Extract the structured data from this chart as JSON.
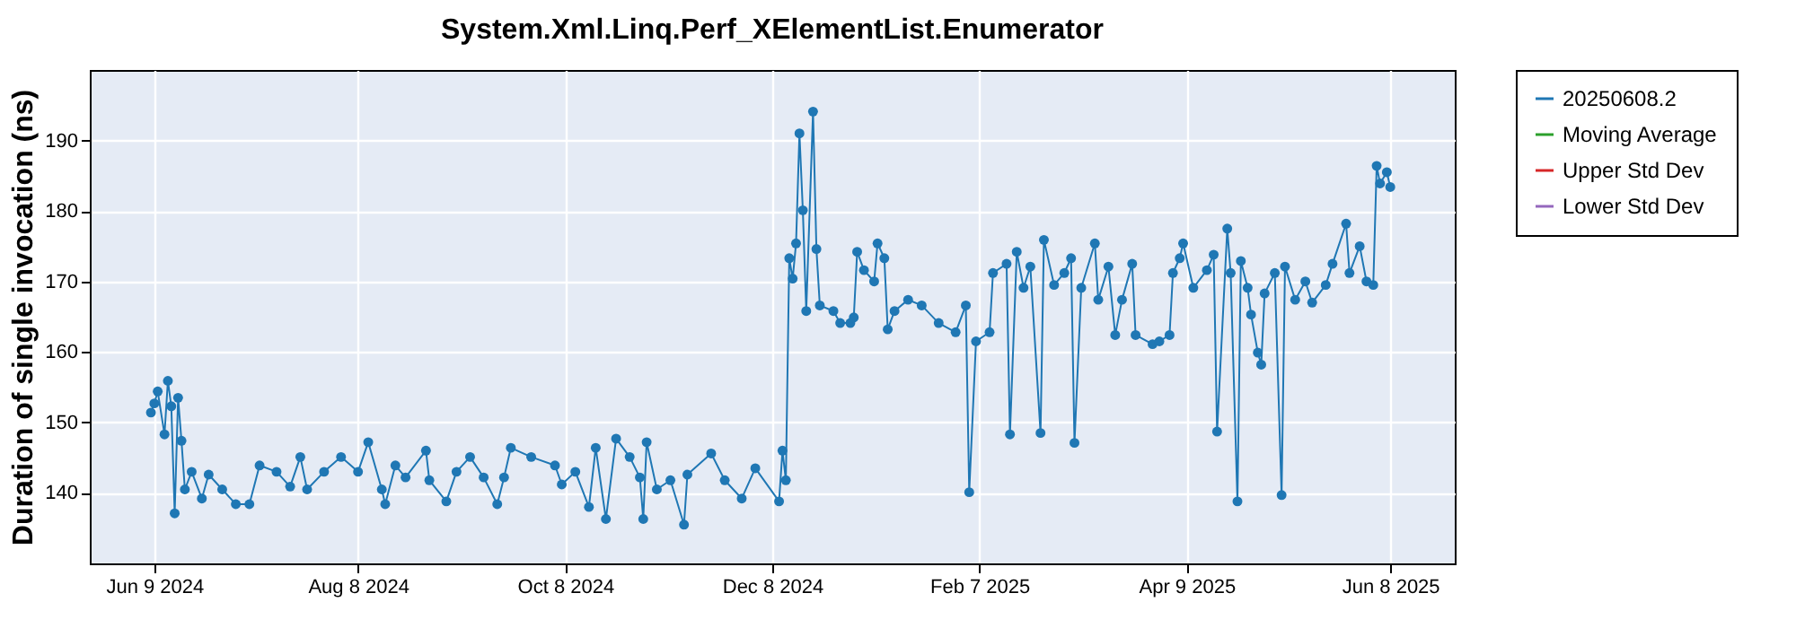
{
  "chart_data": {
    "type": "line",
    "title": "System.Xml.Linq.Perf_XElementList.Enumerator",
    "ylabel": "Duration of single invocation (ns)",
    "x": [
      "2024-06-08",
      "2024-06-09",
      "2024-06-10",
      "2024-06-12",
      "2024-06-13",
      "2024-06-14",
      "2024-06-15",
      "2024-06-16",
      "2024-06-17",
      "2024-06-18",
      "2024-06-20",
      "2024-06-23",
      "2024-06-25",
      "2024-06-29",
      "2024-07-03",
      "2024-07-07",
      "2024-07-10",
      "2024-07-15",
      "2024-07-19",
      "2024-07-22",
      "2024-07-24",
      "2024-07-29",
      "2024-08-03",
      "2024-08-08",
      "2024-08-11",
      "2024-08-15",
      "2024-08-16",
      "2024-08-19",
      "2024-08-22",
      "2024-08-28",
      "2024-08-29",
      "2024-09-03",
      "2024-09-06",
      "2024-09-10",
      "2024-09-14",
      "2024-09-18",
      "2024-09-20",
      "2024-09-22",
      "2024-09-28",
      "2024-10-05",
      "2024-10-07",
      "2024-10-11",
      "2024-10-15",
      "2024-10-17",
      "2024-10-20",
      "2024-10-23",
      "2024-10-27",
      "2024-10-30",
      "2024-10-31",
      "2024-11-01",
      "2024-11-04",
      "2024-11-08",
      "2024-11-12",
      "2024-11-13",
      "2024-11-20",
      "2024-11-24",
      "2024-11-29",
      "2024-12-03",
      "2024-12-10",
      "2024-12-11",
      "2024-12-12",
      "2024-12-13",
      "2024-12-14",
      "2024-12-15",
      "2024-12-16",
      "2024-12-17",
      "2024-12-18",
      "2024-12-20",
      "2024-12-21",
      "2024-12-22",
      "2024-12-26",
      "2024-12-28",
      "2024-12-31",
      "2025-01-01",
      "2025-01-02",
      "2025-01-04",
      "2025-01-07",
      "2025-01-08",
      "2025-01-10",
      "2025-01-11",
      "2025-01-13",
      "2025-01-17",
      "2025-01-21",
      "2025-01-26",
      "2025-01-31",
      "2025-02-03",
      "2025-02-04",
      "2025-02-06",
      "2025-02-10",
      "2025-02-11",
      "2025-02-15",
      "2025-02-16",
      "2025-02-18",
      "2025-02-20",
      "2025-02-22",
      "2025-02-25",
      "2025-02-26",
      "2025-03-01",
      "2025-03-04",
      "2025-03-06",
      "2025-03-07",
      "2025-03-09",
      "2025-03-13",
      "2025-03-14",
      "2025-03-17",
      "2025-03-19",
      "2025-03-21",
      "2025-03-24",
      "2025-03-25",
      "2025-03-30",
      "2025-04-01",
      "2025-04-04",
      "2025-04-05",
      "2025-04-07",
      "2025-04-08",
      "2025-04-11",
      "2025-04-15",
      "2025-04-17",
      "2025-04-18",
      "2025-04-21",
      "2025-04-22",
      "2025-04-24",
      "2025-04-25",
      "2025-04-27",
      "2025-04-28",
      "2025-04-30",
      "2025-05-01",
      "2025-05-02",
      "2025-05-05",
      "2025-05-07",
      "2025-05-08",
      "2025-05-11",
      "2025-05-14",
      "2025-05-16",
      "2025-05-20",
      "2025-05-22",
      "2025-05-26",
      "2025-05-27",
      "2025-05-30",
      "2025-06-01",
      "2025-06-03",
      "2025-06-04",
      "2025-06-05",
      "2025-06-07",
      "2025-06-08"
    ],
    "series": [
      {
        "name": "20250608.2",
        "color": "#1f77b4",
        "values": [
          151.4,
          152.7,
          154.4,
          148.3,
          155.9,
          152.3,
          137.1,
          153.5,
          147.4,
          140.5,
          143,
          139.2,
          142.6,
          140.5,
          138.4,
          138.4,
          143.9,
          143,
          140.9,
          145.1,
          140.5,
          143,
          145.1,
          143,
          147.2,
          140.5,
          138.4,
          143.9,
          142.2,
          146,
          141.8,
          138.8,
          143,
          145.1,
          142.2,
          138.4,
          142.2,
          146.4,
          145.1,
          143.9,
          141.2,
          143,
          138,
          146.4,
          136.3,
          147.7,
          145.1,
          142.2,
          136.3,
          147.2,
          140.5,
          141.8,
          135.5,
          142.6,
          145.6,
          141.8,
          139.2,
          143.5,
          138.8,
          146,
          141.8,
          173.3,
          170.4,
          175.4,
          191,
          180.1,
          165.8,
          194.1,
          174.6,
          166.6,
          165.8,
          164.1,
          164.1,
          164.9,
          174.2,
          171.6,
          170,
          175.4,
          173.3,
          163.2,
          165.8,
          167.4,
          166.6,
          164.1,
          162.8,
          166.6,
          140.1,
          161.5,
          162.8,
          171.2,
          172.5,
          148.3,
          174.2,
          169.1,
          172.1,
          148.5,
          175.9,
          169.5,
          171.2,
          173.3,
          147.1,
          169.1,
          175.4,
          167.4,
          172.1,
          162.4,
          167.4,
          172.5,
          162.4,
          161.1,
          161.5,
          162.4,
          171.2,
          173.3,
          175.4,
          169.1,
          171.6,
          173.8,
          148.7,
          177.5,
          171.2,
          138.8,
          172.9,
          169.1,
          165.3,
          159.9,
          158.2,
          168.3,
          171.2,
          139.7,
          172.1,
          167.4,
          170,
          167,
          169.5,
          172.5,
          178.2,
          171.2,
          175,
          170,
          169.5,
          186.4,
          183.9,
          185.5,
          183.4
        ]
      },
      {
        "name": "Moving Average",
        "color": "#2ca02c",
        "values": [
          null,
          null,
          null,
          null,
          null,
          null,
          null,
          null,
          null,
          null,
          null,
          null,
          null,
          null,
          null,
          null,
          null,
          null,
          null,
          null,
          null,
          null,
          null,
          null,
          null,
          null,
          null,
          null,
          null,
          null,
          null,
          null,
          null,
          null,
          null,
          null,
          null,
          null,
          null,
          null,
          null,
          null,
          null,
          null,
          null,
          null,
          null,
          null,
          null,
          null,
          null,
          null,
          null,
          null,
          null,
          null,
          null,
          null,
          null,
          null,
          null,
          null,
          null,
          null,
          null,
          null,
          null,
          null,
          null,
          null,
          null,
          null,
          null,
          null,
          null,
          null,
          null,
          null,
          null,
          null,
          null,
          null,
          null,
          null,
          null,
          null,
          null,
          null,
          null,
          null,
          null,
          null,
          null,
          null,
          null,
          null,
          null,
          null,
          null,
          null,
          null,
          null,
          null,
          null,
          null,
          null,
          null,
          null,
          null,
          null,
          null,
          null,
          null,
          null,
          null,
          null,
          null,
          null,
          null,
          null,
          null,
          null,
          null,
          null,
          null,
          null,
          null,
          null,
          null,
          null,
          null,
          null,
          null,
          null,
          null,
          null,
          null,
          null,
          null,
          null,
          null,
          null,
          null,
          null,
          null
        ]
      },
      {
        "name": "Upper Std Dev",
        "color": "#d62728",
        "values": [
          null,
          null,
          null,
          null,
          null,
          null,
          null,
          null,
          null,
          null,
          null,
          null,
          null,
          null,
          null,
          null,
          null,
          null,
          null,
          null,
          null,
          null,
          null,
          null,
          null,
          null,
          null,
          null,
          null,
          null,
          null,
          null,
          null,
          null,
          null,
          null,
          null,
          null,
          null,
          null,
          null,
          null,
          null,
          null,
          null,
          null,
          null,
          null,
          null,
          null,
          null,
          null,
          null,
          null,
          null,
          null,
          null,
          null,
          null,
          null,
          null,
          null,
          null,
          null,
          null,
          null,
          null,
          null,
          null,
          null,
          null,
          null,
          null,
          null,
          null,
          null,
          null,
          null,
          null,
          null,
          null,
          null,
          null,
          null,
          null,
          null,
          null,
          null,
          null,
          null,
          null,
          null,
          null,
          null,
          null,
          null,
          null,
          null,
          null,
          null,
          null,
          null,
          null,
          null,
          null,
          null,
          null,
          null,
          null,
          null,
          null,
          null,
          null,
          null,
          null,
          null,
          null,
          null,
          null,
          null,
          null,
          null,
          null,
          null,
          null,
          null,
          null,
          null,
          null,
          null,
          null,
          null,
          null,
          null,
          null,
          null,
          null,
          null,
          null,
          null,
          null,
          null,
          null,
          null,
          null
        ]
      },
      {
        "name": "Lower Std Dev",
        "color": "#9467bd",
        "values": [
          null,
          null,
          null,
          null,
          null,
          null,
          null,
          null,
          null,
          null,
          null,
          null,
          null,
          null,
          null,
          null,
          null,
          null,
          null,
          null,
          null,
          null,
          null,
          null,
          null,
          null,
          null,
          null,
          null,
          null,
          null,
          null,
          null,
          null,
          null,
          null,
          null,
          null,
          null,
          null,
          null,
          null,
          null,
          null,
          null,
          null,
          null,
          null,
          null,
          null,
          null,
          null,
          null,
          null,
          null,
          null,
          null,
          null,
          null,
          null,
          null,
          null,
          null,
          null,
          null,
          null,
          null,
          null,
          null,
          null,
          null,
          null,
          null,
          null,
          null,
          null,
          null,
          null,
          null,
          null,
          null,
          null,
          null,
          null,
          null,
          null,
          null,
          null,
          null,
          null,
          null,
          null,
          null,
          null,
          null,
          null,
          null,
          null,
          null,
          null,
          null,
          null,
          null,
          null,
          null,
          null,
          null,
          null,
          null,
          null,
          null,
          null,
          null,
          null,
          null,
          null,
          null,
          null,
          null,
          null,
          null,
          null,
          null,
          null,
          null,
          null,
          null,
          null,
          null,
          null,
          null,
          null,
          null,
          null,
          null,
          null,
          null,
          null,
          null,
          null,
          null,
          null,
          null,
          null,
          null
        ]
      }
    ],
    "xlim": [
      "2024-05-21",
      "2025-06-27"
    ],
    "xticks": [
      {
        "value": "2024-06-09",
        "label": "Jun 9 2024"
      },
      {
        "value": "2024-08-08",
        "label": "Aug 8 2024"
      },
      {
        "value": "2024-10-08",
        "label": "Oct 8 2024"
      },
      {
        "value": "2024-12-08",
        "label": "Dec 8 2024"
      },
      {
        "value": "2025-02-07",
        "label": "Feb 7 2025"
      },
      {
        "value": "2025-04-09",
        "label": "Apr 9 2025"
      },
      {
        "value": "2025-06-08",
        "label": "Jun 8 2025"
      }
    ],
    "ylim": [
      130,
      200
    ],
    "yticks": [
      140,
      150,
      160,
      170,
      180,
      190
    ],
    "grid": true,
    "legend": "right",
    "marker": "circle",
    "line_style": "solid"
  }
}
